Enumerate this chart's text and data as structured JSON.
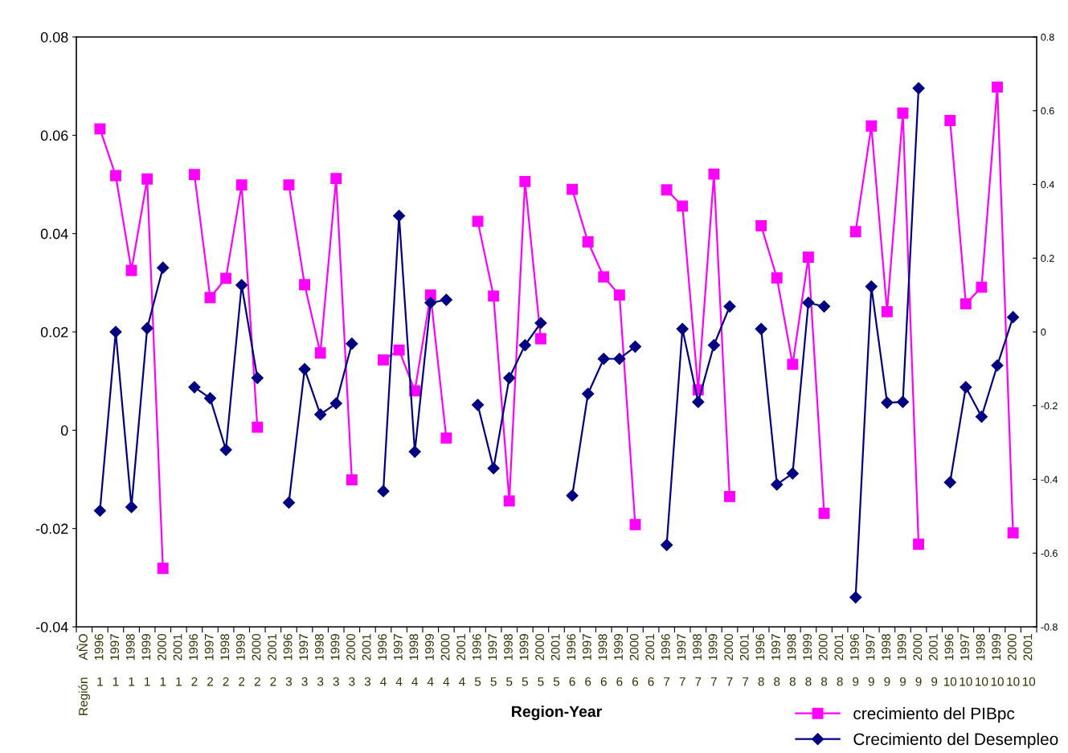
{
  "chart_data": {
    "type": "line",
    "xlabel": "Region-Year",
    "categories": [
      "AÑO\nRegión",
      "1996\n1",
      "1997\n1",
      "1998\n1",
      "1999\n1",
      "2000\n1",
      "2001\n1",
      "1996\n2",
      "1997\n2",
      "1998\n2",
      "1999\n2",
      "2000\n2",
      "2001\n2",
      "1996\n3",
      "1997\n3",
      "1998\n3",
      "1999\n3",
      "2000\n3",
      "2001\n3",
      "1996\n4",
      "1997\n4",
      "1998\n4",
      "1999\n4",
      "2000\n4",
      "2001\n4",
      "1996\n5",
      "1997\n5",
      "1998\n5",
      "1999\n5",
      "2000\n5",
      "2001\n5",
      "1996\n6",
      "1997\n6",
      "1998\n6",
      "1999\n6",
      "2000\n6",
      "2001\n6",
      "1996\n7",
      "1997\n7",
      "1998\n7",
      "1999\n7",
      "2000\n7",
      "2001\n7",
      "1996\n8",
      "1997\n8",
      "1998\n8",
      "1999\n8",
      "2000\n8",
      "2001\n8",
      "1996\n9",
      "1997\n9",
      "1998\n9",
      "1999\n9",
      "2000\n9",
      "2001\n9",
      "1996\n10",
      "1997\n10",
      "1998\n10",
      "1999\n10",
      "2000\n10",
      "2001\n10"
    ],
    "series": [
      {
        "name": "crecimiento del PIBpc",
        "color": "#ff00ff",
        "marker": "square",
        "values": [
          null,
          0.0613,
          0.0518,
          0.0325,
          0.0511,
          -0.0281,
          null,
          0.052,
          0.027,
          0.0309,
          0.0499,
          0.0006,
          null,
          0.0499,
          0.0296,
          0.0157,
          0.0512,
          -0.0101,
          null,
          0.0143,
          0.0163,
          0.008,
          0.0275,
          -0.0016,
          null,
          0.0425,
          0.0273,
          -0.0144,
          0.0506,
          0.0186,
          null,
          0.049,
          0.0383,
          0.0312,
          0.0275,
          -0.0192,
          null,
          0.0489,
          0.0456,
          0.0082,
          0.0521,
          -0.0135,
          null,
          0.0416,
          0.031,
          0.0134,
          0.0352,
          -0.0169,
          null,
          0.0404,
          0.0619,
          0.0241,
          0.0645,
          -0.0232,
          null,
          0.063,
          0.0257,
          0.0291,
          0.0698,
          -0.0209,
          null
        ]
      },
      {
        "name": "Crecimiento del Desempleo",
        "color": "#000080",
        "marker": "diamond",
        "axis": "y2",
        "values": [
          null,
          -0.485,
          0.0,
          -0.475,
          0.01,
          0.174,
          null,
          -0.15,
          -0.18,
          -0.32,
          0.127,
          -0.125,
          null,
          -0.463,
          -0.101,
          -0.224,
          -0.194,
          -0.032,
          null,
          -0.432,
          0.315,
          -0.325,
          0.079,
          0.087,
          null,
          -0.198,
          -0.37,
          -0.125,
          -0.036,
          0.024,
          null,
          -0.444,
          -0.168,
          -0.073,
          -0.073,
          -0.04,
          null,
          -0.578,
          0.008,
          -0.19,
          -0.036,
          0.069,
          null,
          0.008,
          -0.414,
          -0.384,
          0.079,
          0.069,
          null,
          -0.72,
          0.123,
          -0.192,
          -0.19,
          0.661,
          null,
          -0.408,
          -0.15,
          -0.23,
          -0.091,
          0.04,
          null
        ]
      }
    ],
    "ylim": [
      -0.04,
      0.08
    ],
    "yticks": [
      -0.04,
      -0.02,
      0,
      0.02,
      0.04,
      0.06,
      0.08
    ],
    "y2lim": [
      -0.8,
      0.8
    ],
    "y2ticks": [
      -0.8,
      -0.6,
      -0.4,
      -0.2,
      0,
      0.2,
      0.4,
      0.6,
      0.8
    ],
    "grid": false,
    "legend": "bottom right",
    "line_style": "solid"
  }
}
